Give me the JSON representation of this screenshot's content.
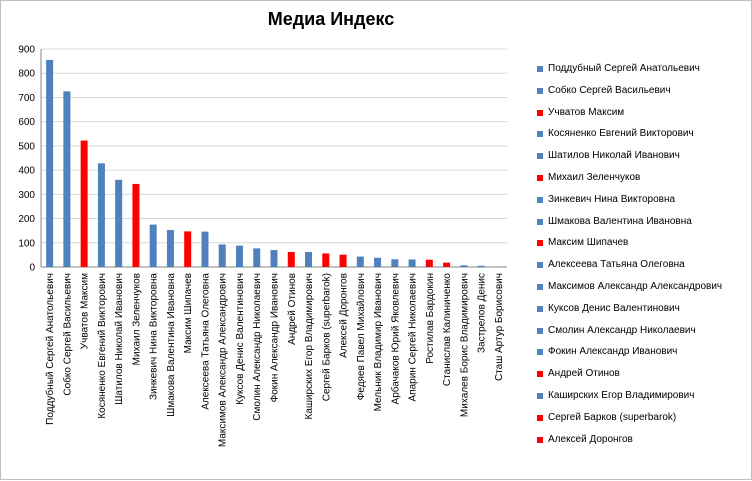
{
  "chart_data": {
    "type": "bar",
    "title": "Медиа Индекс",
    "ylim": [
      0,
      900
    ],
    "yticks": [
      0,
      100,
      200,
      300,
      400,
      500,
      600,
      700,
      800,
      900
    ],
    "grid": "horizontal",
    "legend_position": "right",
    "colors": {
      "blue": "#4f81bd",
      "red": "#ff0000"
    },
    "categories": [
      "Поддубный Сергей Анатольевич",
      "Собко Сергей Васильевич",
      "Учватов Максим",
      "Косяненко Евгений Викторович",
      "Шатилов Николай Иванович",
      "Михаил Зеленчуков",
      "Зинкевич Нина Викторовна",
      "Шмакова Валентина Ивановна",
      "Максим Шипачев",
      "Алексеева Татьяна Олеговна",
      "Максимов Александр Александрович",
      "Куксов Денис Валентинович",
      "Смолин Александр Николаевич",
      "Фокин Александр Иванович",
      "Андрей Отинов",
      "Каширских Егор Владимирович",
      "Сергей Барков (superbarok)",
      "Алексей Доронгов",
      "Федяев Павел Михайлович",
      "Мельник Владимир Иванович",
      "Арбачаков Юрий Яковлевич",
      "Апарин Сергей Николаевич",
      "Ростилав Бардокин",
      "Станислав Калиниченко",
      "Михалев Борис Владимирович",
      "Застрелов Денис",
      "Сташ Артур Борисович"
    ],
    "values": [
      855,
      725,
      522,
      428,
      360,
      343,
      175,
      153,
      147,
      146,
      93,
      88,
      77,
      70,
      62,
      62,
      56,
      51,
      43,
      38,
      32,
      31,
      30,
      18,
      7,
      5,
      2
    ],
    "bar_colors": [
      "blue",
      "blue",
      "red",
      "blue",
      "blue",
      "red",
      "blue",
      "blue",
      "red",
      "blue",
      "blue",
      "blue",
      "blue",
      "blue",
      "red",
      "blue",
      "red",
      "red",
      "blue",
      "blue",
      "blue",
      "blue",
      "red",
      "red",
      "blue",
      "blue",
      "blue"
    ],
    "legend": [
      {
        "label": "Поддубный Сергей Анатольевич",
        "color": "blue"
      },
      {
        "label": "Собко Сергей Васильевич",
        "color": "blue"
      },
      {
        "label": "Учватов Максим",
        "color": "red"
      },
      {
        "label": "Косяненко Евгений Викторович",
        "color": "blue"
      },
      {
        "label": "Шатилов Николай Иванович",
        "color": "blue"
      },
      {
        "label": "Михаил Зеленчуков",
        "color": "red"
      },
      {
        "label": "Зинкевич Нина Викторовна",
        "color": "blue"
      },
      {
        "label": "Шмакова Валентина Ивановна",
        "color": "blue"
      },
      {
        "label": "Максим Шипачев",
        "color": "red"
      },
      {
        "label": "Алексеева Татьяна Олеговна",
        "color": "blue"
      },
      {
        "label": "Максимов Александр Александрович",
        "color": "blue"
      },
      {
        "label": "Куксов Денис Валентинович",
        "color": "blue"
      },
      {
        "label": "Смолин Александр Николаевич",
        "color": "blue"
      },
      {
        "label": "Фокин Александр Иванович",
        "color": "blue"
      },
      {
        "label": "Андрей Отинов",
        "color": "red"
      },
      {
        "label": "Каширских Егор Владимирович",
        "color": "blue"
      },
      {
        "label": "Сергей Барков (superbarok)",
        "color": "red"
      },
      {
        "label": "Алексей Доронгов",
        "color": "red"
      }
    ]
  }
}
